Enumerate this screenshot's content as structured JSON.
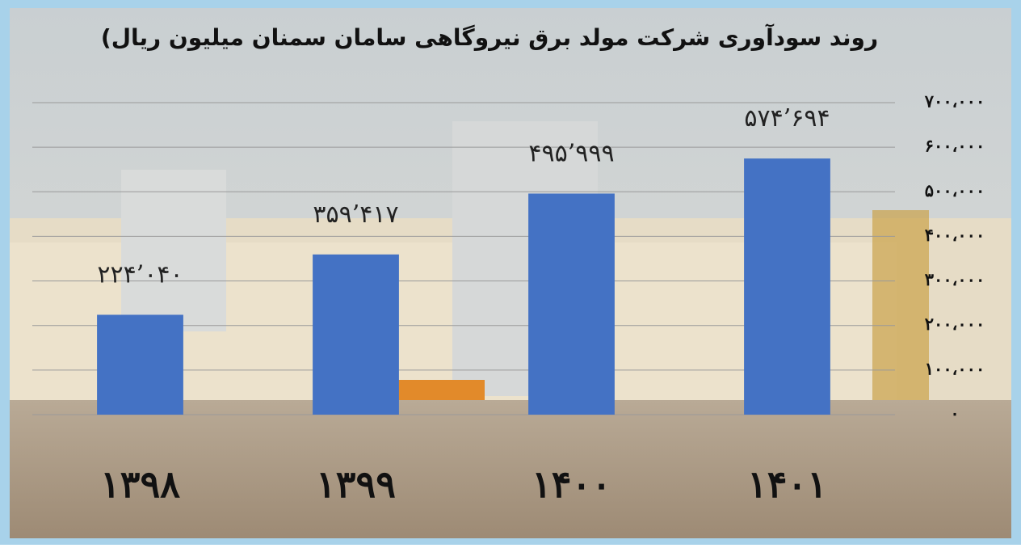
{
  "chart_data": {
    "type": "bar",
    "title": "روند سودآوری شرکت مولد برق نیروگاهی سامان سمنان میلیون ریال)",
    "categories": [
      "۱۳۹۸",
      "۱۳۹۹",
      "۱۴۰۰",
      "۱۴۰۱"
    ],
    "values": [
      224040,
      359417,
      495999,
      574694
    ],
    "value_labels": [
      "۲۲۴’۰۴۰",
      "۳۵۹’۴۱۷",
      "۴۹۵’۹۹۹",
      "۵۷۴’۶۹۴"
    ],
    "color": "#4472c4",
    "ylim": [
      0,
      700000
    ],
    "yticks": [
      {
        "value": 0,
        "label": "۰"
      },
      {
        "value": 100000,
        "label": "۱۰۰،۰۰۰"
      },
      {
        "value": 200000,
        "label": "۲۰۰،۰۰۰"
      },
      {
        "value": 300000,
        "label": "۳۰۰،۰۰۰"
      },
      {
        "value": 400000,
        "label": "۴۰۰،۰۰۰"
      },
      {
        "value": 500000,
        "label": "۵۰۰،۰۰۰"
      },
      {
        "value": 600000,
        "label": "۶۰۰،۰۰۰"
      },
      {
        "value": 700000,
        "label": "۷۰۰،۰۰۰"
      }
    ],
    "grid": true
  }
}
